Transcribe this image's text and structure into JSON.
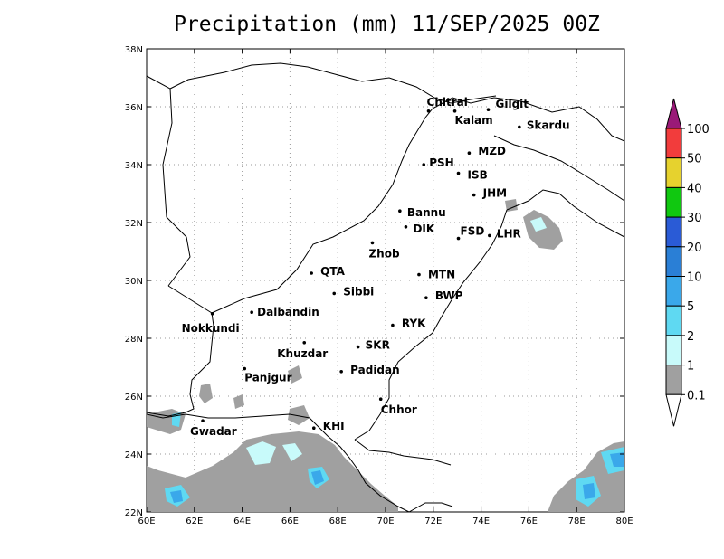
{
  "title": "Precipitation (mm) 11/SEP/2025 00Z",
  "colors": {
    "land_border": "#000000",
    "grid": "#9a9a9a",
    "rain_0_1": "#a0a0a0",
    "rain_1": "#c8fafa",
    "rain_2": "#5fd9f2",
    "rain_5": "#3aa8ea",
    "rain_10": "#2a7fd6"
  },
  "axes": {
    "x_ticks": [
      "60E",
      "62E",
      "64E",
      "66E",
      "68E",
      "70E",
      "72E",
      "74E",
      "76E",
      "78E",
      "80E"
    ],
    "y_ticks": [
      "38N",
      "36N",
      "34N",
      "32N",
      "30N",
      "28N",
      "26N",
      "24N",
      "22N"
    ],
    "lon_range": [
      60,
      80
    ],
    "lat_range": [
      22,
      38
    ],
    "grid": true
  },
  "cities": [
    {
      "name": "Chitral",
      "lon": 71.8,
      "lat": 35.85
    },
    {
      "name": "Gilgit",
      "lon": 74.3,
      "lat": 35.9
    },
    {
      "name": "Kalam",
      "lon": 72.9,
      "lat": 35.85
    },
    {
      "name": "Skardu",
      "lon": 75.6,
      "lat": 35.3
    },
    {
      "name": "MZD",
      "lon": 73.5,
      "lat": 34.4
    },
    {
      "name": "PSH",
      "lon": 71.6,
      "lat": 34.0
    },
    {
      "name": "ISB",
      "lon": 73.05,
      "lat": 33.7
    },
    {
      "name": "JHM",
      "lon": 73.7,
      "lat": 32.95
    },
    {
      "name": "Bannu",
      "lon": 70.6,
      "lat": 32.4
    },
    {
      "name": "DIK",
      "lon": 70.85,
      "lat": 31.85
    },
    {
      "name": "FSD",
      "lon": 73.05,
      "lat": 31.45
    },
    {
      "name": "LHR",
      "lon": 74.35,
      "lat": 31.55
    },
    {
      "name": "Zhob",
      "lon": 69.45,
      "lat": 31.3
    },
    {
      "name": "QTA",
      "lon": 66.9,
      "lat": 30.25
    },
    {
      "name": "MTN",
      "lon": 71.4,
      "lat": 30.2
    },
    {
      "name": "Sibbi",
      "lon": 67.85,
      "lat": 29.55
    },
    {
      "name": "BWP",
      "lon": 71.7,
      "lat": 29.4
    },
    {
      "name": "Dalbandin",
      "lon": 64.4,
      "lat": 28.9
    },
    {
      "name": "Nokkundi",
      "lon": 62.75,
      "lat": 28.85
    },
    {
      "name": "RYK",
      "lon": 70.3,
      "lat": 28.45
    },
    {
      "name": "Khuzdar",
      "lon": 66.6,
      "lat": 27.85
    },
    {
      "name": "SKR",
      "lon": 68.85,
      "lat": 27.7
    },
    {
      "name": "Panjgur",
      "lon": 64.1,
      "lat": 26.95
    },
    {
      "name": "Padidan",
      "lon": 68.15,
      "lat": 26.85
    },
    {
      "name": "Chhor",
      "lon": 69.8,
      "lat": 25.9
    },
    {
      "name": "Gwadar",
      "lon": 62.35,
      "lat": 25.15
    },
    {
      "name": "KHI",
      "lon": 67.0,
      "lat": 24.9
    }
  ],
  "colorbar": {
    "levels": [
      "100",
      "50",
      "40",
      "30",
      "20",
      "10",
      "5",
      "2",
      "1",
      "0.1"
    ],
    "colors": [
      "#9a1a78",
      "#f23c3c",
      "#e6d22e",
      "#10c810",
      "#2a5bd6",
      "#2a7fd6",
      "#3aa8ea",
      "#5fd9f2",
      "#c8fafa",
      "#a0a0a0"
    ]
  }
}
